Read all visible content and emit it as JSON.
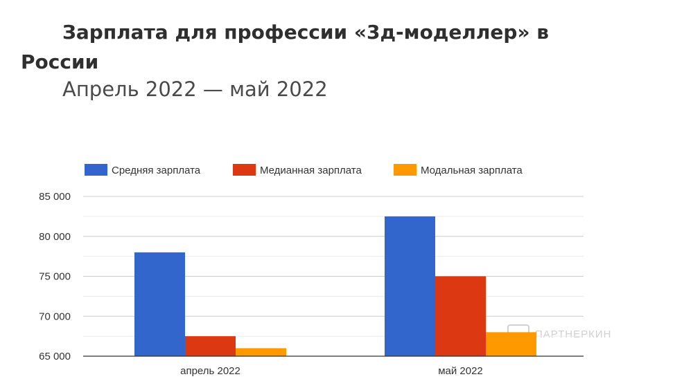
{
  "chart_data": {
    "type": "bar",
    "title": "Зарплата для профессии «3д-моделлер» в России",
    "title_lines": [
      "Зарплата для профессии «3д-моделлер» в",
      "России"
    ],
    "subtitle": "Апрель 2022 — май 2022",
    "categories": [
      "апрель 2022",
      "май 2022"
    ],
    "series": [
      {
        "name": "Средняя зарплата",
        "color": "#3366cc",
        "values": [
          78000,
          82500
        ]
      },
      {
        "name": "Медианная зарплата",
        "color": "#dc3912",
        "values": [
          67500,
          75000
        ]
      },
      {
        "name": "Модальная зарплата",
        "color": "#ff9900",
        "values": [
          66000,
          68000
        ]
      }
    ],
    "ylim": [
      65000,
      85000
    ],
    "yticks": [
      65000,
      70000,
      75000,
      80000,
      85000
    ],
    "ytick_labels": [
      "65 000",
      "70 000",
      "75 000",
      "80 000",
      "85 000"
    ],
    "grid": true,
    "legend_position": "top",
    "xlabel": "",
    "ylabel": ""
  },
  "watermark": {
    "text": "ПАРТНЕРКИН",
    "color": "#d0d0d0"
  }
}
